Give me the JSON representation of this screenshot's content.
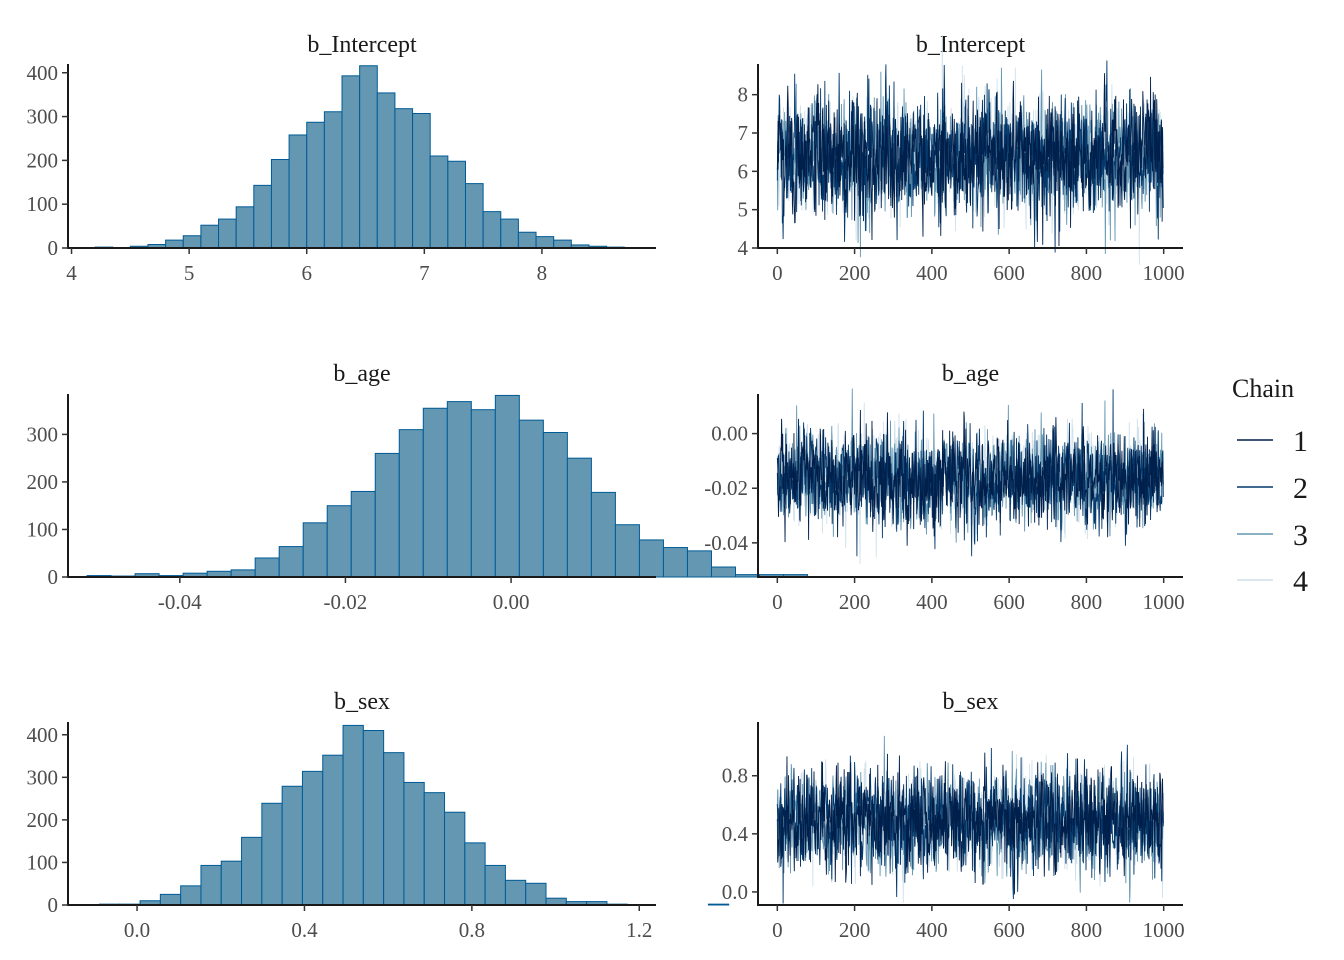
{
  "chart_data": [
    {
      "type": "bar",
      "subtype": "histogram",
      "title": "b_Intercept",
      "bin_width": 0.15,
      "bin_start": 4.2,
      "values": [
        2,
        0,
        4,
        8,
        18,
        28,
        52,
        66,
        94,
        143,
        202,
        258,
        287,
        311,
        393,
        416,
        354,
        318,
        307,
        210,
        198,
        147,
        83,
        66,
        36,
        26,
        18,
        7,
        4,
        2,
        1
      ],
      "xticks": [
        4,
        5,
        6,
        7,
        8
      ],
      "yticks": [
        0,
        100,
        200,
        300,
        400
      ],
      "xlim": [
        3.97,
        8.97
      ],
      "ylim": [
        0,
        420
      ],
      "bar_fill": "#6497b1",
      "bar_stroke": "#005b96"
    },
    {
      "type": "line",
      "subtype": "trace",
      "title": "b_Intercept",
      "iterations": 1000,
      "center": 6.4,
      "spread": 0.75,
      "xticks": [
        0,
        200,
        400,
        600,
        800,
        1000
      ],
      "yticks": [
        4,
        5,
        6,
        7,
        8
      ],
      "xlim": [
        -50,
        1050
      ],
      "ylim": [
        4.0,
        8.8
      ]
    },
    {
      "type": "bar",
      "subtype": "histogram",
      "title": "b_age",
      "bin_width": 0.0029,
      "bin_start": -0.0512,
      "values": [
        3,
        2,
        7,
        3,
        8,
        12,
        15,
        40,
        64,
        114,
        150,
        180,
        260,
        310,
        355,
        369,
        352,
        382,
        330,
        304,
        250,
        178,
        110,
        78,
        62,
        55,
        21,
        5,
        5,
        5
      ],
      "xticks": [
        -0.04,
        -0.02,
        0.0
      ],
      "xtick_labels": [
        "-0.04",
        "-0.02",
        "0.00"
      ],
      "yticks": [
        0,
        100,
        200,
        300
      ],
      "xlim": [
        -0.0535,
        0.0175
      ],
      "ylim": [
        0,
        385
      ],
      "bar_fill": "#6497b1",
      "bar_stroke": "#005b96"
    },
    {
      "type": "line",
      "subtype": "trace",
      "title": "b_age",
      "iterations": 1000,
      "center": -0.016,
      "spread": 0.0085,
      "xticks": [
        0,
        200,
        400,
        600,
        800,
        1000
      ],
      "yticks": [
        -0.04,
        -0.02,
        0.0
      ],
      "ytick_labels": [
        "-0.04",
        "-0.02",
        "0.00"
      ],
      "xlim": [
        -50,
        1050
      ],
      "ylim": [
        -0.0525,
        0.0145
      ]
    },
    {
      "type": "bar",
      "subtype": "histogram",
      "title": "b_sex",
      "bin_width": 0.0485,
      "bin_start": -0.0898,
      "values": [
        2,
        2,
        10,
        25,
        45,
        93,
        103,
        159,
        239,
        279,
        314,
        352,
        422,
        410,
        358,
        288,
        264,
        218,
        146,
        93,
        58,
        51,
        16,
        8,
        8,
        2,
        0,
        0,
        0,
        0,
        2,
        0
      ],
      "xticks": [
        0.0,
        0.4,
        0.8,
        1.2
      ],
      "xtick_labels": [
        "0.0",
        "0.4",
        "0.8",
        "1.2"
      ],
      "yticks": [
        0,
        100,
        200,
        300,
        400
      ],
      "xlim": [
        -0.165,
        1.24
      ],
      "ylim": [
        0,
        430
      ],
      "bar_fill": "#6497b1",
      "bar_stroke": "#005b96"
    },
    {
      "type": "line",
      "subtype": "trace",
      "title": "b_sex",
      "iterations": 1000,
      "center": 0.49,
      "spread": 0.17,
      "xticks": [
        0,
        200,
        400,
        600,
        800,
        1000
      ],
      "yticks": [
        0.0,
        0.4,
        0.8
      ],
      "ytick_labels": [
        "0.0",
        "0.4",
        "0.8"
      ],
      "xlim": [
        -50,
        1050
      ],
      "ylim": [
        -0.09,
        1.17
      ]
    }
  ],
  "legend": {
    "title": "Chain",
    "items": [
      {
        "label": "1",
        "color": "#011f4b"
      },
      {
        "label": "2",
        "color": "#03396c"
      },
      {
        "label": "3",
        "color": "#6497b1"
      },
      {
        "label": "4",
        "color": "#d1e1ec"
      }
    ]
  }
}
